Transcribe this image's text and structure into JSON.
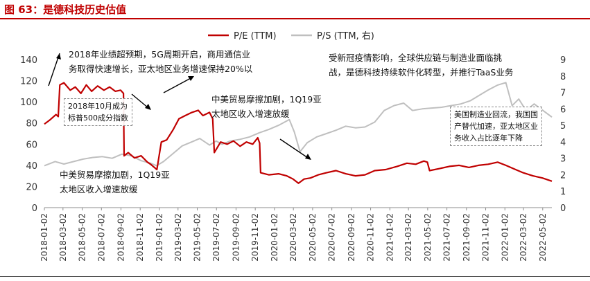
{
  "figure_title": "图 63：是德科技历史估值",
  "chart_data": {
    "type": "line",
    "title": "是德科技历史估值",
    "x_start": "2018-01-02",
    "x_end": "2022-05-31",
    "x_tick_labels": [
      "2018-01-02",
      "2018-03-02",
      "2018-05-02",
      "2018-07-02",
      "2018-09-02",
      "2018-11-02",
      "2019-01-02",
      "2019-03-02",
      "2019-05-02",
      "2019-07-02",
      "2019-09-02",
      "2019-11-02",
      "2020-01-02",
      "2020-03-02",
      "2020-05-02",
      "2020-07-02",
      "2020-09-02",
      "2020-11-02",
      "2021-01-02",
      "2021-03-02",
      "2021-05-02",
      "2021-07-02",
      "2021-09-02",
      "2021-11-02",
      "2022-01-02",
      "2022-03-02",
      "2022-05-02"
    ],
    "y_left": {
      "range": [
        0,
        140
      ],
      "ticks": [
        0,
        20,
        40,
        60,
        80,
        100,
        120,
        140
      ]
    },
    "y_right": {
      "range": [
        0,
        9
      ],
      "ticks": [
        0,
        1,
        2,
        3,
        4,
        5,
        6,
        7,
        8,
        9
      ]
    },
    "grid": false,
    "legend_position": "top-center",
    "series": [
      {
        "name": "P/E (TTM)",
        "axis": "left",
        "color": "#c00000",
        "points": [
          [
            "2018-01-02",
            79
          ],
          [
            "2018-01-20",
            83
          ],
          [
            "2018-02-08",
            88
          ],
          [
            "2018-02-15",
            86
          ],
          [
            "2018-02-20",
            116
          ],
          [
            "2018-03-05",
            118
          ],
          [
            "2018-03-25",
            111
          ],
          [
            "2018-04-10",
            114
          ],
          [
            "2018-04-28",
            108
          ],
          [
            "2018-05-15",
            116
          ],
          [
            "2018-06-01",
            110
          ],
          [
            "2018-06-20",
            115
          ],
          [
            "2018-07-10",
            111
          ],
          [
            "2018-07-28",
            114
          ],
          [
            "2018-08-15",
            110
          ],
          [
            "2018-09-01",
            111
          ],
          [
            "2018-09-10",
            108
          ],
          [
            "2018-09-12",
            49
          ],
          [
            "2018-09-25",
            52
          ],
          [
            "2018-10-15",
            47
          ],
          [
            "2018-11-05",
            49
          ],
          [
            "2018-11-25",
            43
          ],
          [
            "2018-12-05",
            41
          ],
          [
            "2018-12-25",
            36
          ],
          [
            "2019-01-08",
            62
          ],
          [
            "2019-01-25",
            64
          ],
          [
            "2019-02-15",
            74
          ],
          [
            "2019-03-05",
            84
          ],
          [
            "2019-03-25",
            87
          ],
          [
            "2019-04-15",
            90
          ],
          [
            "2019-05-05",
            92
          ],
          [
            "2019-05-20",
            87
          ],
          [
            "2019-06-10",
            90
          ],
          [
            "2019-06-20",
            84
          ],
          [
            "2019-06-25",
            52
          ],
          [
            "2019-07-15",
            62
          ],
          [
            "2019-08-05",
            60
          ],
          [
            "2019-08-25",
            63
          ],
          [
            "2019-09-15",
            58
          ],
          [
            "2019-10-05",
            62
          ],
          [
            "2019-10-25",
            60
          ],
          [
            "2019-11-10",
            66
          ],
          [
            "2019-11-16",
            61
          ],
          [
            "2019-11-19",
            33
          ],
          [
            "2019-12-15",
            31
          ],
          [
            "2020-01-15",
            32
          ],
          [
            "2020-02-10",
            30
          ],
          [
            "2020-03-01",
            27
          ],
          [
            "2020-03-18",
            23
          ],
          [
            "2020-04-05",
            27
          ],
          [
            "2020-04-25",
            28
          ],
          [
            "2020-05-20",
            31
          ],
          [
            "2020-06-15",
            33
          ],
          [
            "2020-07-15",
            35
          ],
          [
            "2020-08-15",
            32
          ],
          [
            "2020-09-15",
            30
          ],
          [
            "2020-10-15",
            31
          ],
          [
            "2020-11-15",
            35
          ],
          [
            "2020-12-20",
            36
          ],
          [
            "2021-01-25",
            39
          ],
          [
            "2021-02-25",
            42
          ],
          [
            "2021-03-25",
            41
          ],
          [
            "2021-04-20",
            44
          ],
          [
            "2021-05-01",
            43
          ],
          [
            "2021-05-08",
            35
          ],
          [
            "2021-06-10",
            37
          ],
          [
            "2021-07-10",
            39
          ],
          [
            "2021-08-10",
            40
          ],
          [
            "2021-09-10",
            38
          ],
          [
            "2021-10-10",
            40
          ],
          [
            "2021-11-10",
            41
          ],
          [
            "2021-12-10",
            43
          ],
          [
            "2022-01-05",
            40
          ],
          [
            "2022-02-05",
            36
          ],
          [
            "2022-03-01",
            33
          ],
          [
            "2022-04-01",
            30
          ],
          [
            "2022-05-01",
            28
          ],
          [
            "2022-05-31",
            25
          ]
        ]
      },
      {
        "name": "P/S (TTM, 右)",
        "axis": "right",
        "color": "#bfbfbf",
        "points": [
          [
            "2018-01-02",
            2.55
          ],
          [
            "2018-02-05",
            2.8
          ],
          [
            "2018-03-05",
            2.65
          ],
          [
            "2018-04-05",
            2.8
          ],
          [
            "2018-05-05",
            2.95
          ],
          [
            "2018-06-05",
            3.05
          ],
          [
            "2018-07-05",
            3.1
          ],
          [
            "2018-08-05",
            3.0
          ],
          [
            "2018-09-05",
            3.25
          ],
          [
            "2018-10-05",
            3.15
          ],
          [
            "2018-11-05",
            2.85
          ],
          [
            "2018-12-05",
            2.7
          ],
          [
            "2018-12-24",
            2.55
          ],
          [
            "2019-01-15",
            2.8
          ],
          [
            "2019-02-15",
            3.3
          ],
          [
            "2019-03-15",
            3.75
          ],
          [
            "2019-04-15",
            4.0
          ],
          [
            "2019-05-10",
            4.2
          ],
          [
            "2019-06-10",
            3.8
          ],
          [
            "2019-07-01",
            4.05
          ],
          [
            "2019-07-20",
            3.85
          ],
          [
            "2019-08-15",
            4.05
          ],
          [
            "2019-09-15",
            4.15
          ],
          [
            "2019-10-15",
            4.3
          ],
          [
            "2019-11-15",
            4.55
          ],
          [
            "2019-12-15",
            4.75
          ],
          [
            "2020-01-15",
            5.0
          ],
          [
            "2020-02-18",
            5.35
          ],
          [
            "2020-03-05",
            4.6
          ],
          [
            "2020-03-23",
            3.4
          ],
          [
            "2020-04-15",
            3.95
          ],
          [
            "2020-05-15",
            4.3
          ],
          [
            "2020-06-15",
            4.5
          ],
          [
            "2020-07-15",
            4.7
          ],
          [
            "2020-08-15",
            4.95
          ],
          [
            "2020-09-15",
            4.85
          ],
          [
            "2020-10-15",
            4.9
          ],
          [
            "2020-11-15",
            5.2
          ],
          [
            "2020-12-15",
            5.9
          ],
          [
            "2021-01-15",
            6.2
          ],
          [
            "2021-02-15",
            6.35
          ],
          [
            "2021-03-15",
            5.9
          ],
          [
            "2021-04-15",
            6.0
          ],
          [
            "2021-05-15",
            6.05
          ],
          [
            "2021-06-15",
            6.1
          ],
          [
            "2021-07-15",
            6.2
          ],
          [
            "2021-08-15",
            6.3
          ],
          [
            "2021-09-15",
            6.5
          ],
          [
            "2021-10-15",
            6.85
          ],
          [
            "2021-11-10",
            7.15
          ],
          [
            "2021-12-10",
            7.45
          ],
          [
            "2022-01-05",
            7.6
          ],
          [
            "2022-01-25",
            6.2
          ],
          [
            "2022-02-15",
            6.6
          ],
          [
            "2022-03-10",
            5.9
          ],
          [
            "2022-04-05",
            6.3
          ],
          [
            "2022-05-31",
            5.5
          ]
        ]
      }
    ],
    "annotations": [
      {
        "lines": [
          "2018年业绩超预期，5G周期开启，商用通信业",
          "务取得快速增长，亚太地区业务增速保持20%以"
        ]
      },
      {
        "lines": [
          "2018年10月成为",
          "标普500成分指数"
        ]
      },
      {
        "lines": [
          "中美贸易摩擦加剧，1Q19亚",
          "太地区收入增速放缓"
        ]
      },
      {
        "lines": [
          "中美贸易摩擦加剧，1Q19亚",
          "太地区收入增速放缓"
        ]
      },
      {
        "lines": [
          "受新冠疫情影响，全球供应链与制造业面临挑",
          "战，是德科技持续软件化转型，并推行TaaS业务"
        ]
      },
      {
        "lines": [
          "美国制造业回流，我国国",
          "产替代加速，亚太地区业",
          "务收入占比逐年下降"
        ]
      }
    ]
  }
}
